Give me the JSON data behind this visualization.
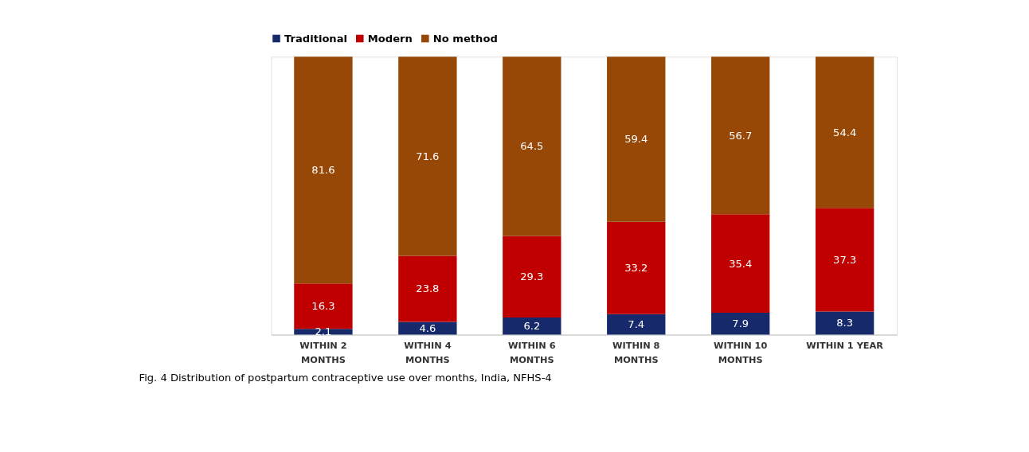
{
  "chart_data": {
    "type": "bar",
    "stacked": true,
    "data_labels": true,
    "grid": "x",
    "legend": "top",
    "categories": [
      "WITHIN 2\nMONTHS",
      "WITHIN 4\nMONTHS",
      "WITHIN 6\nMONTHS",
      "WITHIN 8\nMONTHS",
      "WITHIN 10\nMONTHS",
      "WITHIN 1 YEAR"
    ],
    "series": [
      {
        "name": "Traditional",
        "color": "#162a6b",
        "values": [
          2.1,
          4.6,
          6.2,
          7.4,
          7.9,
          8.3
        ]
      },
      {
        "name": "Modern",
        "color": "#c00000",
        "values": [
          16.3,
          23.8,
          29.3,
          33.2,
          35.4,
          37.3
        ]
      },
      {
        "name": "No method",
        "color": "#974706",
        "values": [
          81.6,
          71.6,
          64.5,
          59.4,
          56.7,
          54.4
        ]
      }
    ],
    "annotations": [
      "Fig. 4  Distribution of postpartum contraceptive use over months, India, NFHS-4"
    ]
  }
}
